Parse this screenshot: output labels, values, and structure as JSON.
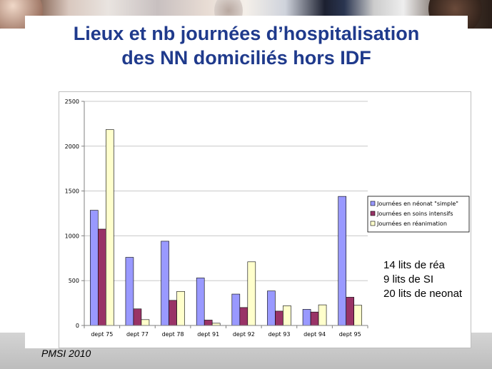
{
  "slide": {
    "title_line1": "Lieux et nb journées d’hospitalisation",
    "title_line2": "des NN domiciliés hors IDF",
    "notes": [
      "14 lits de réa",
      "9 lits de SI",
      "20 lits de neonat"
    ],
    "footer": "PMSI 2010",
    "colors": {
      "title": "#1f3a8c"
    }
  },
  "chart_data": {
    "type": "bar",
    "title": "",
    "xlabel": "",
    "ylabel": "",
    "ylim": [
      0,
      2500
    ],
    "yticks": [
      0,
      500,
      1000,
      1500,
      2000,
      2500
    ],
    "grid": true,
    "legend_position": "right",
    "categories": [
      "dept 75",
      "dept 77",
      "dept 78",
      "dept 91",
      "dept 92",
      "dept 93",
      "dept 94",
      "dept 95"
    ],
    "series": [
      {
        "name": "Journées en néonat \"simple\"",
        "color": "#9999ff",
        "values": [
          1285,
          760,
          940,
          530,
          350,
          385,
          180,
          1440
        ]
      },
      {
        "name": "Journées en soins intensifs",
        "color": "#993366",
        "values": [
          1075,
          185,
          280,
          60,
          200,
          160,
          150,
          315
        ]
      },
      {
        "name": "Journées en réanimation",
        "color": "#ffffcc",
        "values": [
          2185,
          65,
          380,
          25,
          710,
          220,
          230,
          225
        ]
      }
    ]
  }
}
